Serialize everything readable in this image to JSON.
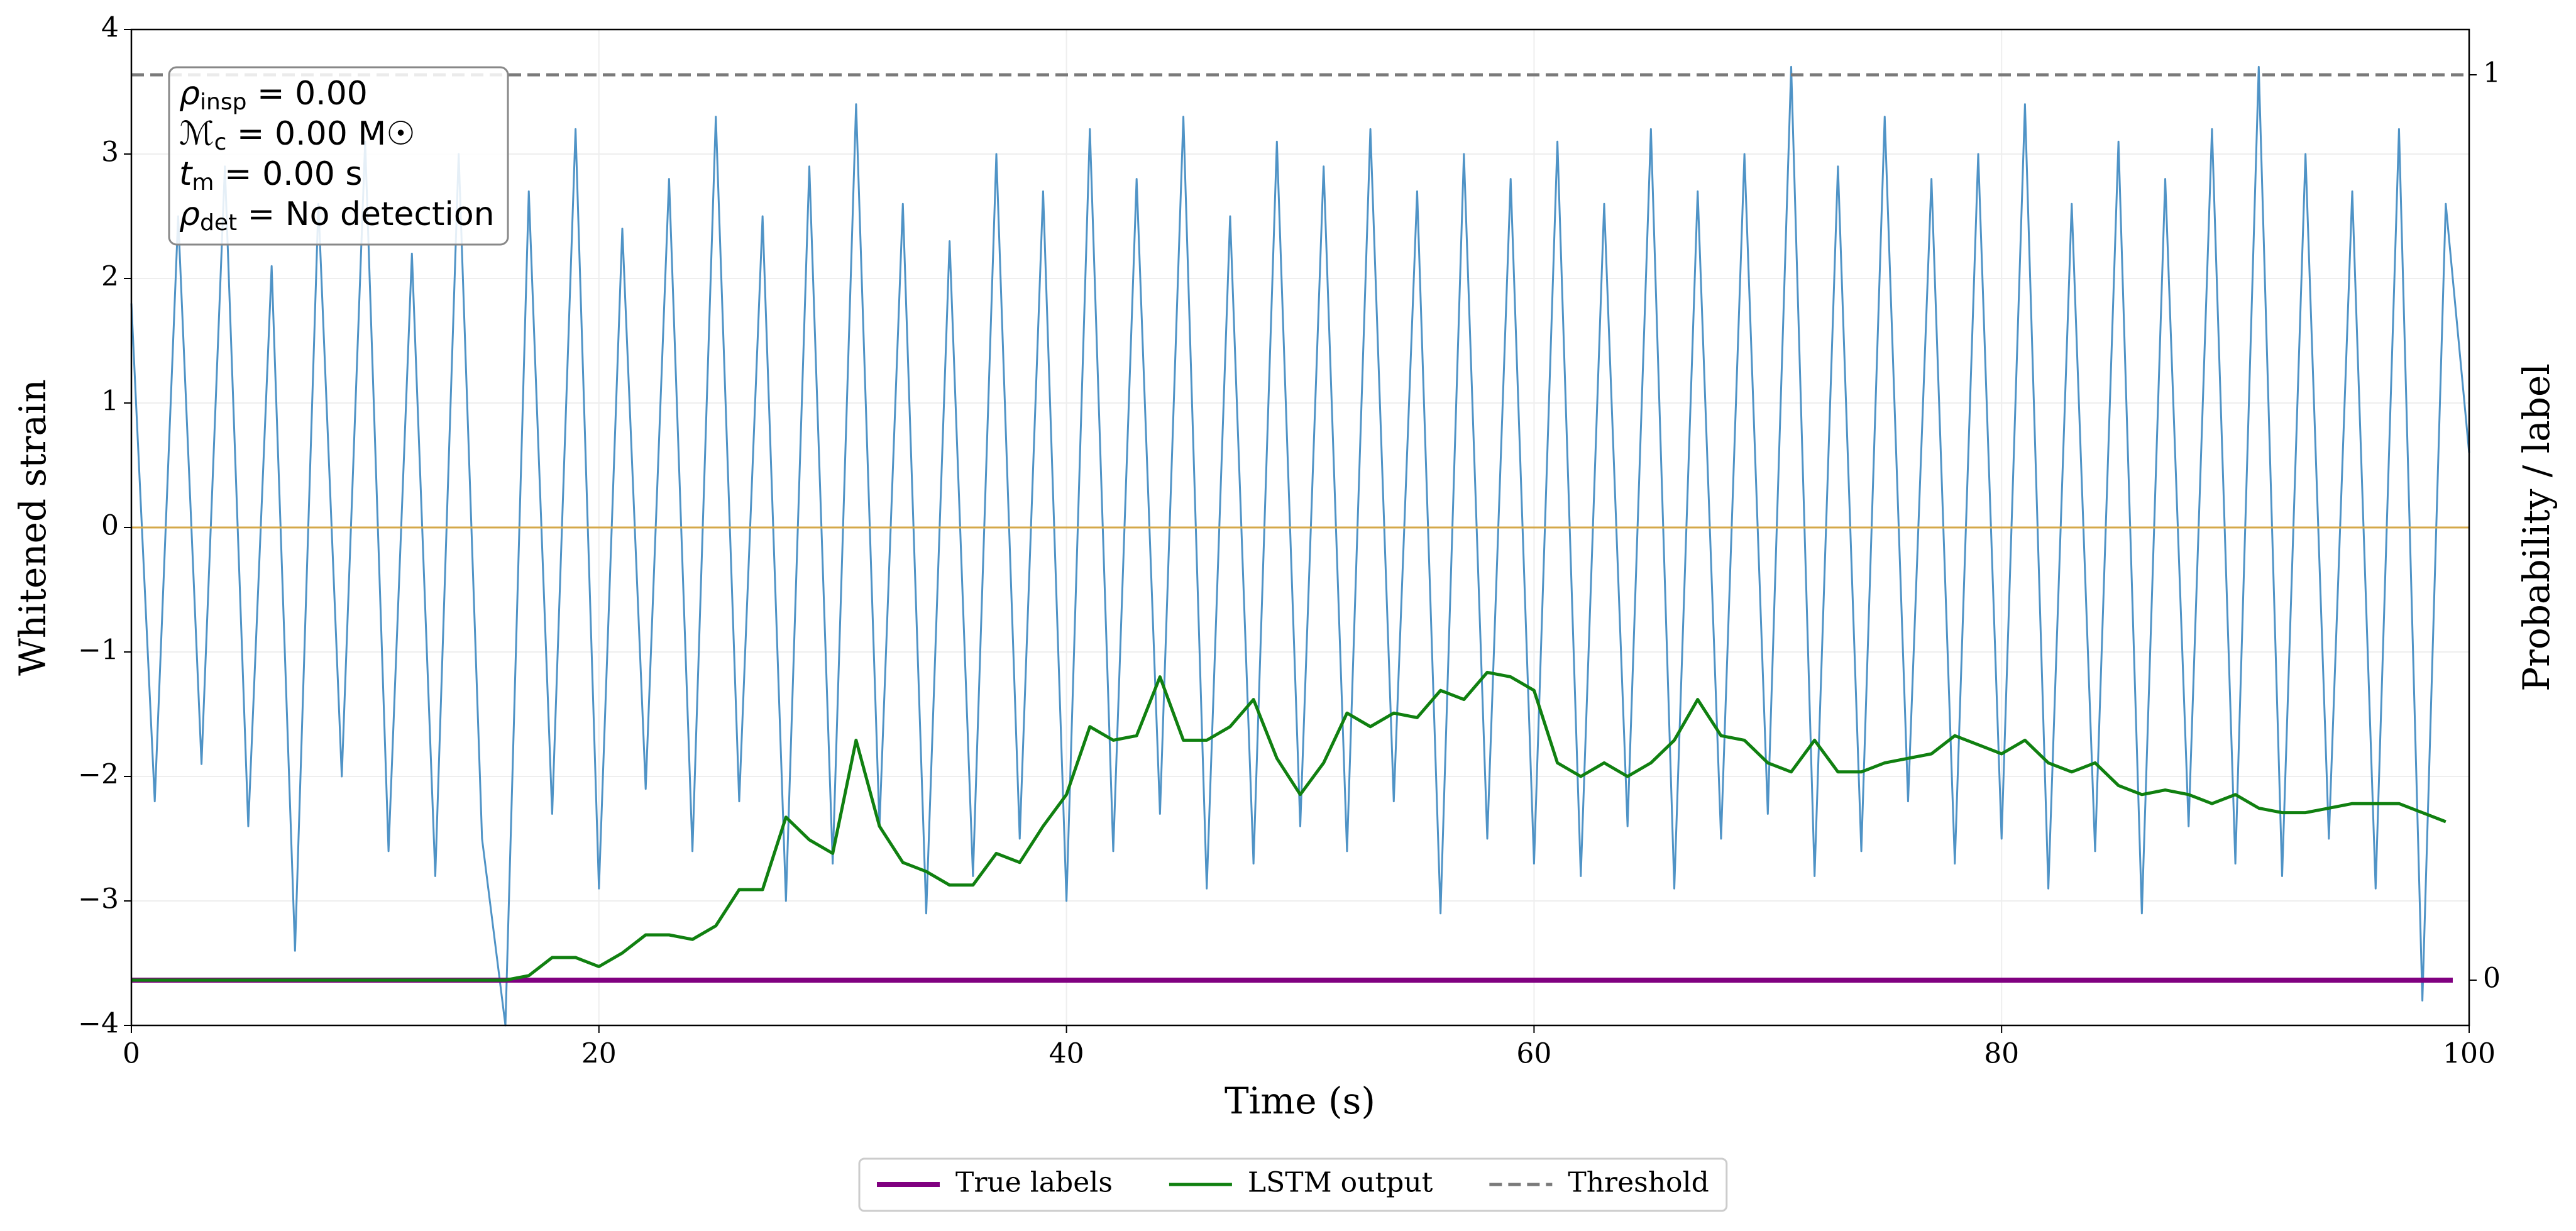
{
  "chart_data": {
    "type": "line",
    "xlabel": "Time (s)",
    "ylabel": "Whitened strain",
    "y2label": "Probability / label",
    "xlim": [
      0,
      100
    ],
    "xticks": [
      0,
      20,
      40,
      60,
      80,
      100
    ],
    "ylim": [
      -4,
      4
    ],
    "yticks": [
      {
        "value": -4,
        "label": "−4"
      },
      {
        "value": -3,
        "label": "−3"
      },
      {
        "value": -2,
        "label": "−2"
      },
      {
        "value": -1,
        "label": "−1"
      },
      0,
      1,
      2,
      3,
      4
    ],
    "y2lim": [
      -0.05,
      1.05
    ],
    "y2ticks": [
      0,
      1
    ],
    "grid": true,
    "annotation": [
      {
        "symbol": "ρ",
        "sub": "insp",
        "text": " = 0.00"
      },
      {
        "symbol": "ℳ",
        "sub": "c",
        "text": " = 0.00 M☉"
      },
      {
        "symbol": "t",
        "sub": "m",
        "text": " = 0.00 s"
      },
      {
        "symbol": "ρ",
        "sub": "det",
        "text": " = No detection"
      }
    ],
    "series": [
      {
        "color": "#4f93c6",
        "x": [
          0,
          1,
          2,
          3,
          4,
          5,
          6,
          7,
          8,
          9,
          10,
          11,
          12,
          13,
          14,
          15,
          16,
          17,
          18,
          19,
          20,
          21,
          22,
          23,
          24,
          25,
          26,
          27,
          28,
          29,
          30,
          31,
          32,
          33,
          34,
          35,
          36,
          37,
          38,
          39,
          40,
          41,
          42,
          43,
          44,
          45,
          46,
          47,
          48,
          49,
          50,
          51,
          52,
          53,
          54,
          55,
          56,
          57,
          58,
          59,
          60,
          61,
          62,
          63,
          64,
          65,
          66,
          67,
          68,
          69,
          70,
          71,
          72,
          73,
          74,
          75,
          76,
          77,
          78,
          79,
          80,
          81,
          82,
          83,
          84,
          85,
          86,
          87,
          88,
          89,
          90,
          91,
          92,
          93,
          94,
          95,
          96,
          97,
          98,
          99,
          100
        ],
        "values": [
          1.8,
          -2.2,
          2.5,
          -1.9,
          2.9,
          -2.4,
          2.1,
          -3.4,
          2.6,
          -2.0,
          3.1,
          -2.6,
          2.2,
          -2.8,
          3.0,
          -2.5,
          -4.0,
          2.7,
          -2.3,
          3.2,
          -2.9,
          2.4,
          -2.1,
          2.8,
          -2.6,
          3.3,
          -2.2,
          2.5,
          -3.0,
          2.9,
          -2.7,
          3.4,
          -2.4,
          2.6,
          -3.1,
          2.3,
          -2.8,
          3.0,
          -2.5,
          2.7,
          -3.0,
          3.2,
          -2.6,
          2.8,
          -2.3,
          3.3,
          -2.9,
          2.5,
          -2.7,
          3.1,
          -2.4,
          2.9,
          -2.6,
          3.2,
          -2.2,
          2.7,
          -3.1,
          3.0,
          -2.5,
          2.8,
          -2.7,
          3.1,
          -2.8,
          2.6,
          -2.4,
          3.2,
          -2.9,
          2.7,
          -2.5,
          3.0,
          -2.3,
          3.7,
          -2.8,
          2.9,
          -2.6,
          3.3,
          -2.2,
          2.8,
          -2.7,
          3.0,
          -2.5,
          3.4,
          -2.9,
          2.6,
          -2.6,
          3.1,
          -3.1,
          2.8,
          -2.4,
          3.2,
          -2.7,
          3.7,
          -2.8,
          3.0,
          -2.5,
          2.7,
          -2.9,
          3.2,
          -3.8,
          2.6,
          0.6
        ]
      },
      {
        "color": "#d4a84a",
        "x": [
          0,
          100
        ],
        "values": [
          0,
          0
        ]
      },
      {
        "name": "True labels",
        "color": "#800080",
        "axis": "y2",
        "x": [
          0,
          99.3
        ],
        "values": [
          0,
          0
        ]
      },
      {
        "name": "LSTM output",
        "color": "#108010",
        "axis": "y2",
        "x": [
          0,
          1,
          2,
          3,
          4,
          5,
          6,
          7,
          8,
          9,
          10,
          11,
          12,
          13,
          14,
          15,
          16,
          17,
          18,
          19,
          20,
          21,
          22,
          23,
          24,
          25,
          26,
          27,
          28,
          29,
          30,
          31,
          32,
          33,
          34,
          35,
          36,
          37,
          38,
          39,
          40,
          41,
          42,
          43,
          44,
          45,
          46,
          47,
          48,
          49,
          50,
          51,
          52,
          53,
          54,
          55,
          56,
          57,
          58,
          59,
          60,
          61,
          62,
          63,
          64,
          65,
          66,
          67,
          68,
          69,
          70,
          71,
          72,
          73,
          74,
          75,
          76,
          77,
          78,
          79,
          80,
          81,
          82,
          83,
          84,
          85,
          86,
          87,
          88,
          89,
          90,
          91,
          92,
          93,
          94,
          95,
          96,
          97,
          98,
          99
        ],
        "values": [
          0,
          0,
          0,
          0,
          0,
          0,
          0,
          0,
          0,
          0,
          0,
          0,
          0,
          0,
          0,
          0,
          0,
          0.005,
          0.025,
          0.025,
          0.015,
          0.03,
          0.05,
          0.05,
          0.045,
          0.06,
          0.1,
          0.1,
          0.18,
          0.155,
          0.14,
          0.265,
          0.17,
          0.13,
          0.12,
          0.105,
          0.105,
          0.14,
          0.13,
          0.17,
          0.205,
          0.28,
          0.265,
          0.27,
          0.335,
          0.265,
          0.265,
          0.28,
          0.31,
          0.245,
          0.205,
          0.24,
          0.295,
          0.28,
          0.295,
          0.29,
          0.32,
          0.31,
          0.34,
          0.335,
          0.32,
          0.24,
          0.225,
          0.24,
          0.225,
          0.24,
          0.265,
          0.31,
          0.27,
          0.265,
          0.24,
          0.23,
          0.265,
          0.23,
          0.23,
          0.24,
          0.245,
          0.25,
          0.27,
          0.26,
          0.25,
          0.265,
          0.24,
          0.23,
          0.24,
          0.215,
          0.205,
          0.21,
          0.205,
          0.195,
          0.205,
          0.19,
          0.185,
          0.185,
          0.19,
          0.195,
          0.195,
          0.195,
          0.185,
          0.175
        ]
      },
      {
        "name": "Threshold",
        "color": "#7a7a7a",
        "axis": "y2",
        "dash": true,
        "x": [
          0,
          100
        ],
        "values": [
          1,
          1
        ]
      }
    ]
  }
}
